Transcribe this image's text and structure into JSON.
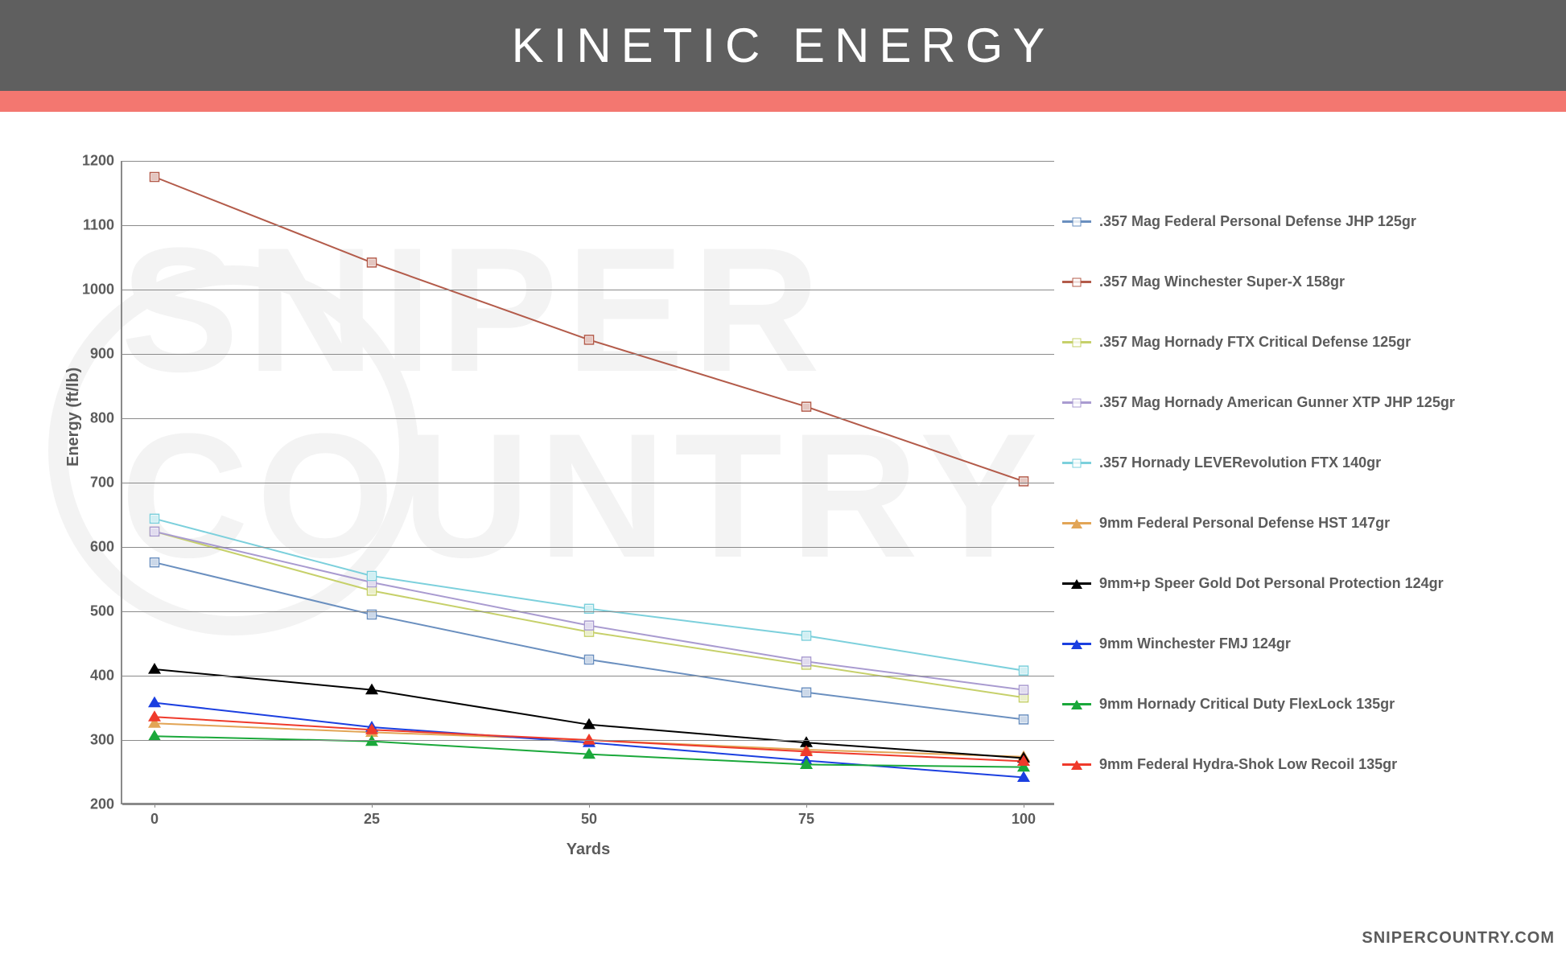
{
  "header": {
    "title": "KINETIC ENERGY"
  },
  "accent_color": "#f37770",
  "header_bg": "#5f5f5f",
  "attribution": "SNIPERCOUNTRY.COM",
  "chart": {
    "type": "line",
    "xlabel": "Yards",
    "ylabel": "Energy (ft/lb)",
    "x_values": [
      0,
      25,
      50,
      75,
      100
    ],
    "ylim": [
      200,
      1200
    ],
    "ytick_step": 100,
    "grid_color": "#8a8a8a",
    "background_color": "#ffffff",
    "axis_color": "#8a8a8a",
    "label_color": "#5b5b5b",
    "tick_fontsize": 18,
    "label_fontsize": 20,
    "line_width": 2,
    "marker_size": 11,
    "series": [
      {
        "label": ".357 Mag Federal Personal Defense JHP 125gr",
        "color": "#6a8fbf",
        "marker": "square",
        "values": [
          576,
          495,
          425,
          374,
          332
        ]
      },
      {
        "label": ".357 Mag Winchester Super-X 158gr",
        "color": "#b35b4a",
        "marker": "square",
        "values": [
          1175,
          1042,
          922,
          818,
          702
        ]
      },
      {
        "label": ".357 Mag Hornady FTX Critical Defense 125gr",
        "color": "#c6d06a",
        "marker": "square",
        "values": [
          624,
          532,
          468,
          417,
          366
        ]
      },
      {
        "label": ".357 Mag Hornady American Gunner XTP JHP 125gr",
        "color": "#a99bd0",
        "marker": "square",
        "values": [
          624,
          545,
          478,
          422,
          378
        ]
      },
      {
        "label": ".357 Hornady LEVERevolution FTX 140gr",
        "color": "#7cd0dc",
        "marker": "square",
        "values": [
          644,
          555,
          504,
          462,
          408
        ]
      },
      {
        "label": "9mm Federal Personal Defense HST 147gr",
        "color": "#e2a556",
        "marker": "triangle",
        "values": [
          326,
          312,
          300,
          285,
          274
        ]
      },
      {
        "label": "9mm+p Speer Gold Dot Personal Protection 124gr",
        "color": "#000000",
        "marker": "triangle",
        "values": [
          410,
          378,
          324,
          296,
          272
        ]
      },
      {
        "label": "9mm Winchester FMJ 124gr",
        "color": "#1b3fe0",
        "marker": "triangle",
        "values": [
          358,
          320,
          296,
          268,
          242
        ]
      },
      {
        "label": "9mm Hornady Critical Duty FlexLock 135gr",
        "color": "#1aa83a",
        "marker": "triangle",
        "values": [
          306,
          298,
          278,
          262,
          258
        ]
      },
      {
        "label": "9mm Federal Hydra-Shok Low Recoil 135gr",
        "color": "#ef3a2b",
        "marker": "triangle",
        "values": [
          336,
          316,
          300,
          282,
          267
        ]
      }
    ]
  },
  "watermark": {
    "line1": "SNIPER",
    "line2": "COUNTRY",
    "color": "#f3f3f3"
  }
}
